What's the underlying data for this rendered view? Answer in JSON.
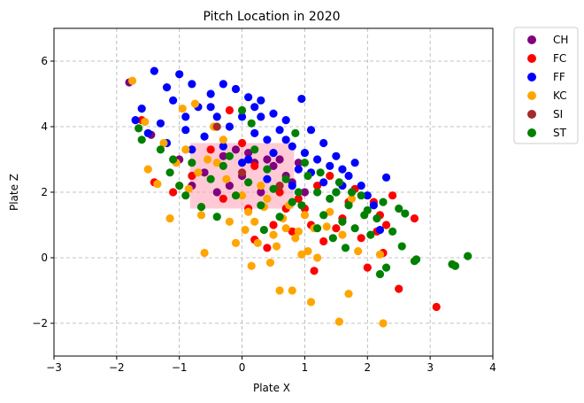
{
  "chart_data": {
    "type": "scatter",
    "title": "Pitch Location in 2020",
    "xlabel": "Plate X",
    "ylabel": "Plate Z",
    "xlim": [
      -3,
      4
    ],
    "ylim": [
      -3,
      7
    ],
    "xticks": [
      -3,
      -2,
      -1,
      0,
      1,
      2,
      3,
      4
    ],
    "yticks": [
      -2,
      0,
      2,
      4,
      6
    ],
    "grid": true,
    "legend_position": "outside-right-top",
    "strike_zone_color": "#ff9eb4",
    "series": [
      {
        "name": "CH",
        "color": "#800080",
        "points": [
          [
            -1.8,
            5.35
          ],
          [
            -1.45,
            3.75
          ],
          [
            -1.0,
            3.0
          ],
          [
            -0.6,
            2.6
          ],
          [
            -0.3,
            3.1
          ],
          [
            -0.2,
            2.2
          ],
          [
            0.0,
            2.5
          ],
          [
            0.1,
            3.2
          ],
          [
            0.3,
            2.0
          ],
          [
            0.5,
            2.8
          ],
          [
            0.6,
            3.0
          ],
          [
            0.8,
            2.3
          ],
          [
            0.9,
            2.9
          ],
          [
            -0.8,
            2.2
          ],
          [
            -0.4,
            2.0
          ],
          [
            0.2,
            2.9
          ],
          [
            0.7,
            2.5
          ],
          [
            -0.1,
            3.3
          ],
          [
            0.4,
            3.0
          ],
          [
            1.0,
            2.0
          ]
        ]
      },
      {
        "name": "FC",
        "color": "#ff0000",
        "points": [
          [
            -1.6,
            4.2
          ],
          [
            -1.4,
            2.3
          ],
          [
            -1.1,
            2.0
          ],
          [
            -0.8,
            2.5
          ],
          [
            -0.5,
            3.3
          ],
          [
            -0.2,
            4.5
          ],
          [
            0.0,
            3.5
          ],
          [
            0.2,
            2.8
          ],
          [
            0.5,
            1.0
          ],
          [
            0.7,
            1.5
          ],
          [
            0.9,
            1.8
          ],
          [
            1.1,
            1.0
          ],
          [
            1.2,
            2.2
          ],
          [
            1.3,
            0.5
          ],
          [
            1.4,
            2.5
          ],
          [
            1.6,
            1.2
          ],
          [
            1.8,
            2.1
          ],
          [
            2.0,
            -0.3
          ],
          [
            2.1,
            1.7
          ],
          [
            2.2,
            1.3
          ],
          [
            2.3,
            1.0
          ],
          [
            2.4,
            1.9
          ],
          [
            2.5,
            -0.95
          ],
          [
            2.75,
            1.2
          ],
          [
            3.1,
            -1.5
          ],
          [
            1.15,
            -0.4
          ],
          [
            0.2,
            0.55
          ],
          [
            0.4,
            0.3
          ],
          [
            0.8,
            0.8
          ],
          [
            1.5,
            0.9
          ],
          [
            1.9,
            0.6
          ],
          [
            2.25,
            0.15
          ],
          [
            -0.3,
            1.8
          ],
          [
            0.1,
            1.5
          ],
          [
            0.6,
            2.0
          ],
          [
            1.0,
            1.5
          ],
          [
            1.7,
            1.7
          ],
          [
            2.15,
            0.8
          ]
        ]
      },
      {
        "name": "FF",
        "color": "#0000ff",
        "points": [
          [
            -1.4,
            5.7
          ],
          [
            -1.2,
            5.2
          ],
          [
            -1.0,
            5.6
          ],
          [
            -0.8,
            5.3
          ],
          [
            -0.5,
            5.0
          ],
          [
            -0.3,
            5.3
          ],
          [
            -0.1,
            5.15
          ],
          [
            0.1,
            4.9
          ],
          [
            0.3,
            4.8
          ],
          [
            0.5,
            4.4
          ],
          [
            0.7,
            4.2
          ],
          [
            0.95,
            4.85
          ],
          [
            1.1,
            3.9
          ],
          [
            1.3,
            3.5
          ],
          [
            1.5,
            3.1
          ],
          [
            1.6,
            2.7
          ],
          [
            1.8,
            2.9
          ],
          [
            2.3,
            2.45
          ],
          [
            -1.6,
            4.55
          ],
          [
            -1.5,
            3.8
          ],
          [
            -1.3,
            4.1
          ],
          [
            -1.1,
            4.8
          ],
          [
            -0.9,
            4.3
          ],
          [
            -0.7,
            4.6
          ],
          [
            -0.4,
            4.3
          ],
          [
            -0.2,
            4.0
          ],
          [
            0.0,
            4.3
          ],
          [
            0.2,
            3.8
          ],
          [
            0.4,
            3.6
          ],
          [
            0.6,
            3.9
          ],
          [
            0.8,
            3.4
          ],
          [
            1.0,
            3.2
          ],
          [
            1.2,
            3.0
          ],
          [
            1.4,
            2.8
          ],
          [
            1.7,
            2.5
          ],
          [
            1.9,
            2.2
          ],
          [
            2.1,
            1.6
          ],
          [
            2.2,
            0.85
          ],
          [
            -0.6,
            3.7
          ],
          [
            -0.3,
            3.4
          ],
          [
            0.1,
            3.0
          ],
          [
            0.5,
            3.2
          ],
          [
            0.9,
            2.7
          ],
          [
            1.3,
            2.3
          ],
          [
            -1.7,
            4.2
          ],
          [
            -0.9,
            3.9
          ],
          [
            0.3,
            4.3
          ],
          [
            0.7,
            3.6
          ],
          [
            1.5,
            2.0
          ],
          [
            -1.2,
            3.5
          ],
          [
            0.0,
            2.9
          ],
          [
            0.4,
            2.4
          ],
          [
            0.8,
            2.2
          ],
          [
            1.1,
            2.6
          ],
          [
            -0.5,
            4.6
          ],
          [
            0.2,
            4.6
          ],
          [
            -0.8,
            3.3
          ],
          [
            1.6,
            2.2
          ],
          [
            2.0,
            1.9
          ]
        ]
      },
      {
        "name": "KC",
        "color": "#ffa500",
        "points": [
          [
            -1.75,
            5.4
          ],
          [
            -1.55,
            4.15
          ],
          [
            -1.5,
            2.7
          ],
          [
            -1.35,
            2.25
          ],
          [
            -1.15,
            1.2
          ],
          [
            -0.95,
            4.55
          ],
          [
            -0.75,
            4.7
          ],
          [
            -0.65,
            1.3
          ],
          [
            -0.6,
            0.15
          ],
          [
            -0.45,
            4.0
          ],
          [
            -0.3,
            3.6
          ],
          [
            -0.1,
            0.45
          ],
          [
            0.05,
            0.85
          ],
          [
            0.15,
            -0.25
          ],
          [
            0.25,
            0.45
          ],
          [
            0.35,
            1.55
          ],
          [
            0.45,
            -0.15
          ],
          [
            0.55,
            0.35
          ],
          [
            0.6,
            -1.0
          ],
          [
            0.8,
            -1.0
          ],
          [
            0.85,
            0.6
          ],
          [
            0.95,
            0.1
          ],
          [
            1.05,
            0.2
          ],
          [
            1.1,
            -1.35
          ],
          [
            1.2,
            0.0
          ],
          [
            1.35,
            0.95
          ],
          [
            1.55,
            -1.95
          ],
          [
            1.7,
            -1.1
          ],
          [
            1.75,
            1.8
          ],
          [
            2.2,
            0.1
          ],
          [
            2.25,
            -2.0
          ],
          [
            -1.25,
            3.5
          ],
          [
            -1.05,
            2.9
          ],
          [
            -0.85,
            2.1
          ],
          [
            -0.55,
            3.0
          ],
          [
            -0.25,
            2.4
          ],
          [
            0.0,
            1.9
          ],
          [
            0.2,
            1.1
          ],
          [
            0.4,
            1.8
          ],
          [
            0.65,
            1.2
          ],
          [
            0.9,
            0.8
          ],
          [
            1.15,
            0.9
          ],
          [
            1.4,
            1.4
          ],
          [
            1.6,
            0.7
          ],
          [
            1.85,
            0.2
          ],
          [
            -0.7,
            2.6
          ],
          [
            -0.4,
            2.9
          ],
          [
            0.1,
            1.4
          ],
          [
            0.5,
            0.7
          ],
          [
            0.75,
            1.6
          ],
          [
            1.0,
            1.3
          ],
          [
            -0.9,
            3.3
          ],
          [
            -0.2,
            1.1
          ],
          [
            0.3,
            2.2
          ],
          [
            0.7,
            0.9
          ]
        ]
      },
      {
        "name": "SI",
        "color": "#a52a2a",
        "points": [
          [
            -0.4,
            4.0
          ],
          [
            0.0,
            2.6
          ],
          [
            0.6,
            2.2
          ]
        ]
      },
      {
        "name": "ST",
        "color": "#008000",
        "points": [
          [
            -1.65,
            3.95
          ],
          [
            -1.6,
            3.6
          ],
          [
            -1.3,
            3.3
          ],
          [
            -1.15,
            2.6
          ],
          [
            -1.0,
            2.2
          ],
          [
            -0.65,
            1.55
          ],
          [
            -0.4,
            1.25
          ],
          [
            -0.1,
            1.9
          ],
          [
            0.0,
            4.5
          ],
          [
            0.15,
            4.1
          ],
          [
            0.35,
            0.85
          ],
          [
            0.6,
            1.25
          ],
          [
            0.85,
            3.8
          ],
          [
            1.05,
            2.5
          ],
          [
            1.2,
            2.0
          ],
          [
            1.3,
            1.3
          ],
          [
            1.4,
            1.8
          ],
          [
            1.55,
            2.3
          ],
          [
            1.65,
            0.3
          ],
          [
            1.7,
            1.6
          ],
          [
            1.8,
            0.9
          ],
          [
            1.9,
            1.9
          ],
          [
            2.0,
            1.45
          ],
          [
            2.05,
            0.7
          ],
          [
            2.15,
            1.2
          ],
          [
            2.2,
            -0.5
          ],
          [
            2.3,
            -0.3
          ],
          [
            2.4,
            0.8
          ],
          [
            2.5,
            1.5
          ],
          [
            2.55,
            0.35
          ],
          [
            2.6,
            1.35
          ],
          [
            2.75,
            -0.1
          ],
          [
            2.78,
            -0.05
          ],
          [
            3.35,
            -0.2
          ],
          [
            3.4,
            -0.25
          ],
          [
            3.6,
            0.05
          ],
          [
            -0.8,
            2.9
          ],
          [
            -0.5,
            2.4
          ],
          [
            -0.2,
            3.1
          ],
          [
            0.2,
            3.3
          ],
          [
            0.5,
            2.1
          ],
          [
            0.8,
            1.7
          ],
          [
            1.0,
            2.9
          ],
          [
            1.25,
            2.6
          ],
          [
            1.5,
            2.0
          ],
          [
            1.75,
            2.0
          ],
          [
            -0.9,
            1.9
          ],
          [
            -0.3,
            2.8
          ],
          [
            0.1,
            2.3
          ],
          [
            0.4,
            2.7
          ],
          [
            0.7,
            2.4
          ],
          [
            0.95,
            1.6
          ],
          [
            1.6,
            1.1
          ],
          [
            1.95,
            1.3
          ],
          [
            2.25,
            1.7
          ],
          [
            1.45,
            0.6
          ],
          [
            1.2,
            0.9
          ],
          [
            -1.1,
            3.0
          ],
          [
            0.3,
            1.6
          ],
          [
            0.9,
            2.0
          ]
        ]
      }
    ]
  }
}
